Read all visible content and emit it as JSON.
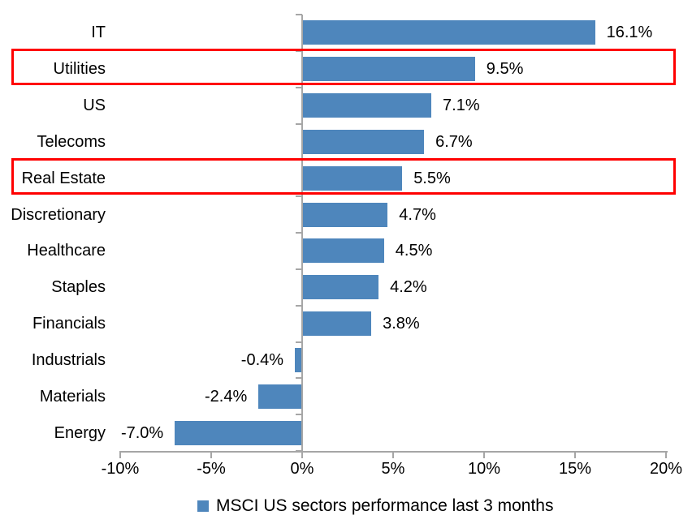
{
  "chart_data": {
    "type": "bar",
    "orientation": "horizontal",
    "title": "",
    "legend": "MSCI US sectors performance last 3 months",
    "legend_position": "bottom-center",
    "categories": [
      "IT",
      "Utilities",
      "US",
      "Telecoms",
      "Real Estate",
      "Discretionary",
      "Healthcare",
      "Staples",
      "Financials",
      "Industrials",
      "Materials",
      "Energy"
    ],
    "values": [
      16.1,
      9.5,
      7.1,
      6.7,
      5.5,
      4.7,
      4.5,
      4.2,
      3.8,
      -0.4,
      -2.4,
      -7.0
    ],
    "value_labels": [
      "16.1%",
      "9.5%",
      "7.1%",
      "6.7%",
      "5.5%",
      "4.7%",
      "4.5%",
      "4.2%",
      "3.8%",
      "-0.4%",
      "-2.4%",
      "-7.0%"
    ],
    "xlim": [
      -10,
      20
    ],
    "x_tick_values": [
      -10,
      -5,
      0,
      5,
      10,
      15,
      20
    ],
    "x_tick_labels": [
      "-10%",
      "-5%",
      "0%",
      "5%",
      "10%",
      "15%",
      "20%"
    ],
    "grid": false,
    "highlighted_categories": [
      "Utilities",
      "Real Estate"
    ]
  },
  "colors": {
    "bar": "#4E86BC",
    "highlight_box": "#FF0000",
    "axis": "#A6A6A6",
    "text": "#000000",
    "background": "#FFFFFF"
  }
}
